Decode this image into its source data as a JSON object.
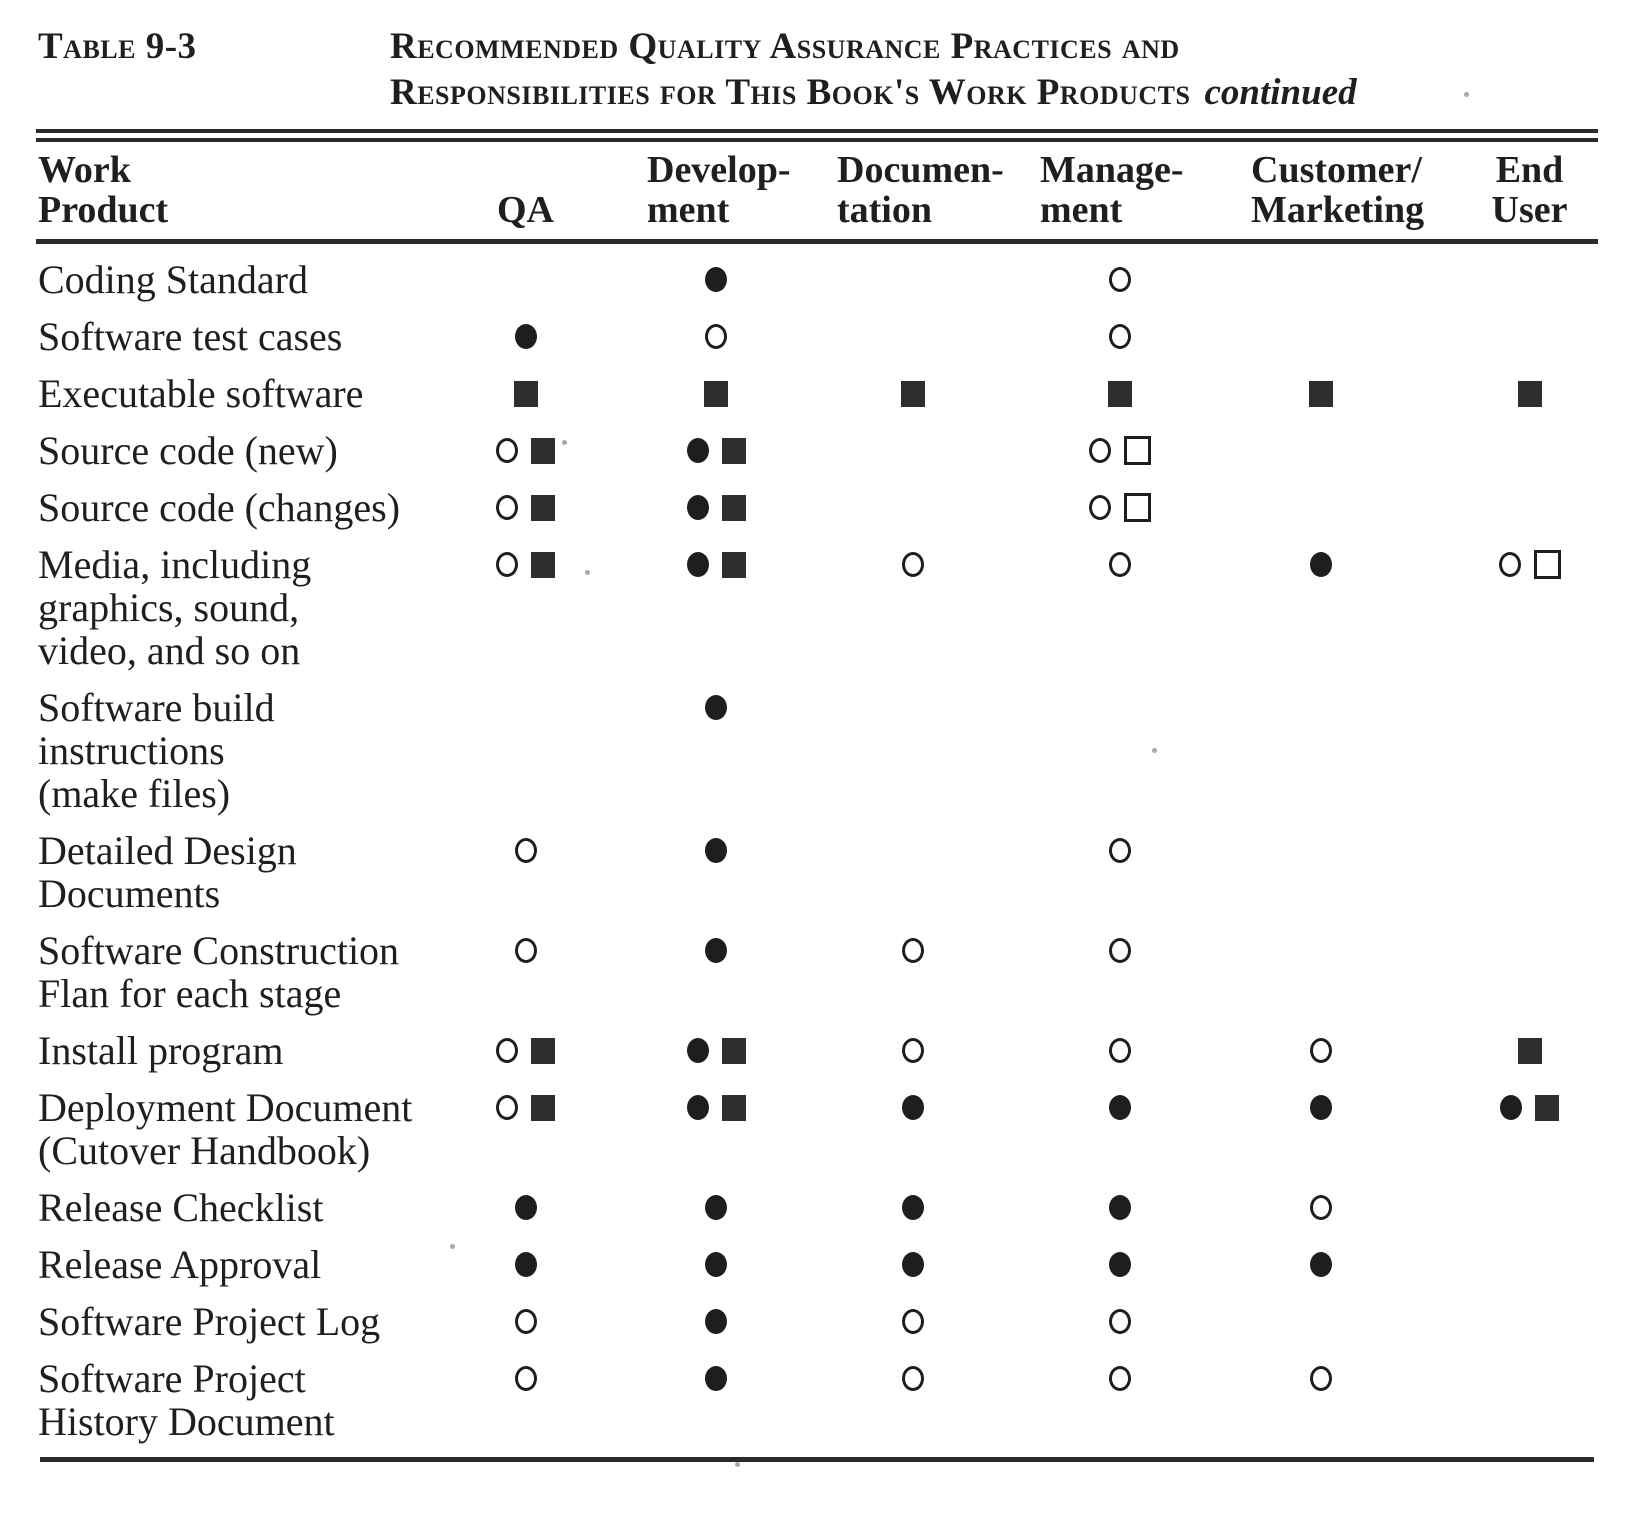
{
  "title": {
    "table_label": "Table 9-3",
    "line1": "Recommended Quality Assurance Practices and",
    "line2": "Responsibilities for This Book's Work Products",
    "continued": "continued"
  },
  "table": {
    "columns": [
      {
        "key": "work_product",
        "line1": "Work",
        "line2": "Product"
      },
      {
        "key": "qa",
        "line1": "",
        "line2": "QA"
      },
      {
        "key": "development",
        "line1": "Develop-",
        "line2": "ment"
      },
      {
        "key": "documentation",
        "line1": "Documen-",
        "line2": "tation"
      },
      {
        "key": "management",
        "line1": "Manage-",
        "line2": "ment"
      },
      {
        "key": "customer_marketing",
        "line1": "Customer/",
        "line2": "Marketing"
      },
      {
        "key": "end_user",
        "line1": "End",
        "line2": "User"
      }
    ],
    "symbol_glyphs": {
      "filled-circle": "●",
      "open-circle": "○",
      "filled-square": "■",
      "open-square": "□"
    },
    "rows": [
      {
        "product_lines": [
          "Coding Standard"
        ],
        "cells": [
          [],
          [
            "filled-circle"
          ],
          [],
          [
            "open-circle"
          ],
          [],
          []
        ]
      },
      {
        "product_lines": [
          "Software test cases"
        ],
        "cells": [
          [
            "filled-circle"
          ],
          [
            "open-circle"
          ],
          [],
          [
            "open-circle"
          ],
          [],
          []
        ]
      },
      {
        "product_lines": [
          "Executable software"
        ],
        "cells": [
          [
            "filled-square"
          ],
          [
            "filled-square"
          ],
          [
            "filled-square"
          ],
          [
            "filled-square"
          ],
          [
            "filled-square"
          ],
          [
            "filled-square"
          ]
        ]
      },
      {
        "product_lines": [
          "Source code (new)"
        ],
        "cells": [
          [
            "open-circle",
            "filled-square"
          ],
          [
            "filled-circle",
            "filled-square"
          ],
          [],
          [
            "open-circle",
            "open-square"
          ],
          [],
          []
        ]
      },
      {
        "product_lines": [
          "Source code (changes)"
        ],
        "cells": [
          [
            "open-circle",
            "filled-square"
          ],
          [
            "filled-circle",
            "filled-square"
          ],
          [],
          [
            "open-circle",
            "open-square"
          ],
          [],
          []
        ]
      },
      {
        "product_lines": [
          "Media, including",
          "graphics, sound,",
          "video, and so on"
        ],
        "cells": [
          [
            "open-circle",
            "filled-square"
          ],
          [
            "filled-circle",
            "filled-square"
          ],
          [
            "open-circle"
          ],
          [
            "open-circle"
          ],
          [
            "filled-circle"
          ],
          [
            "open-circle",
            "open-square"
          ]
        ]
      },
      {
        "product_lines": [
          "Software build",
          "instructions",
          "(make files)"
        ],
        "cells": [
          [],
          [
            "filled-circle"
          ],
          [],
          [],
          [],
          []
        ]
      },
      {
        "product_lines": [
          "Detailed Design",
          "Documents"
        ],
        "cells": [
          [
            "open-circle"
          ],
          [
            "filled-circle"
          ],
          [],
          [
            "open-circle"
          ],
          [],
          []
        ]
      },
      {
        "product_lines": [
          "Software Construction",
          "Flan for each stage"
        ],
        "cells": [
          [
            "open-circle"
          ],
          [
            "filled-circle"
          ],
          [
            "open-circle"
          ],
          [
            "open-circle"
          ],
          [],
          []
        ]
      },
      {
        "product_lines": [
          "Install program"
        ],
        "cells": [
          [
            "open-circle",
            "filled-square"
          ],
          [
            "filled-circle",
            "filled-square"
          ],
          [
            "open-circle"
          ],
          [
            "open-circle"
          ],
          [
            "open-circle"
          ],
          [
            "filled-square"
          ]
        ]
      },
      {
        "product_lines": [
          "Deployment Document",
          "(Cutover Handbook)"
        ],
        "cells": [
          [
            "open-circle",
            "filled-square"
          ],
          [
            "filled-circle",
            "filled-square"
          ],
          [
            "filled-circle"
          ],
          [
            "filled-circle"
          ],
          [
            "filled-circle"
          ],
          [
            "filled-circle",
            "filled-square"
          ]
        ]
      },
      {
        "product_lines": [
          "Release Checklist"
        ],
        "cells": [
          [
            "filled-circle"
          ],
          [
            "filled-circle"
          ],
          [
            "filled-circle"
          ],
          [
            "filled-circle"
          ],
          [
            "open-circle"
          ],
          []
        ]
      },
      {
        "product_lines": [
          "Release Approval"
        ],
        "cells": [
          [
            "filled-circle"
          ],
          [
            "filled-circle"
          ],
          [
            "filled-circle"
          ],
          [
            "filled-circle"
          ],
          [
            "filled-circle"
          ],
          []
        ]
      },
      {
        "product_lines": [
          "Software Project Log"
        ],
        "cells": [
          [
            "open-circle"
          ],
          [
            "filled-circle"
          ],
          [
            "open-circle"
          ],
          [
            "open-circle"
          ],
          [],
          []
        ]
      },
      {
        "product_lines": [
          "Software Project",
          "History Document"
        ],
        "cells": [
          [
            "open-circle"
          ],
          [
            "filled-circle"
          ],
          [
            "open-circle"
          ],
          [
            "open-circle"
          ],
          [
            "open-circle"
          ],
          []
        ]
      }
    ]
  },
  "colors": {
    "ink": "#1f1f1f",
    "paper": "#ffffff"
  }
}
